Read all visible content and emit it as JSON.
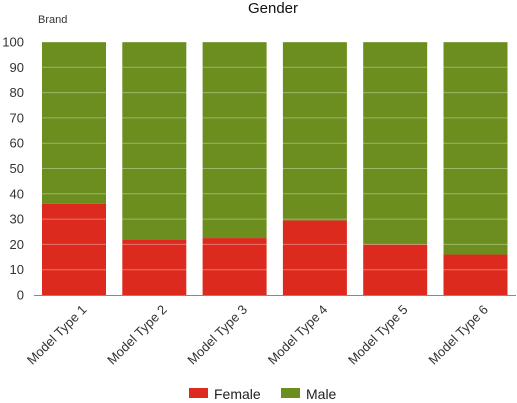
{
  "chart_data": {
    "type": "bar",
    "stacked": true,
    "title": "Gender",
    "ylabel": "Brand",
    "xlabel": "",
    "ylim": [
      0,
      100
    ],
    "yticks": [
      0,
      10,
      20,
      30,
      40,
      50,
      60,
      70,
      80,
      90,
      100
    ],
    "grid": true,
    "legend": "bottom-center",
    "categories": [
      "Model Type 1",
      "Model Type 2",
      "Model Type 3",
      "Model Type 4",
      "Model Type 5",
      "Model Type 6"
    ],
    "series": [
      {
        "name": "Female",
        "color": "#dc2a1f",
        "values": [
          36,
          22,
          22.5,
          29.5,
          20,
          16
        ]
      },
      {
        "name": "Male",
        "color": "#6b8e1e",
        "values": [
          64,
          78,
          77.5,
          70.5,
          80,
          84
        ]
      }
    ]
  }
}
